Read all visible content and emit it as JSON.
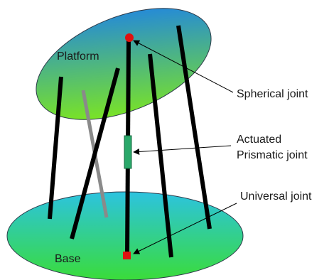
{
  "labels": {
    "platform": "Platform",
    "base": "Base",
    "spherical": "Spherical joint",
    "actuated_line1": "Actuated",
    "actuated_line2": "Prismatic joint",
    "universal": "Universal joint"
  },
  "colors": {
    "platform_top": "#1d82e8",
    "platform_bottom": "#7ee81c",
    "base_top": "#2cc3e0",
    "base_bottom": "#3adc3a",
    "leg": "#000000",
    "back_leg": "#8a8a8a",
    "spherical_joint": "#e01010",
    "universal_joint": "#e01010",
    "actuator": "#2aa86a",
    "pointer": "#000000"
  }
}
